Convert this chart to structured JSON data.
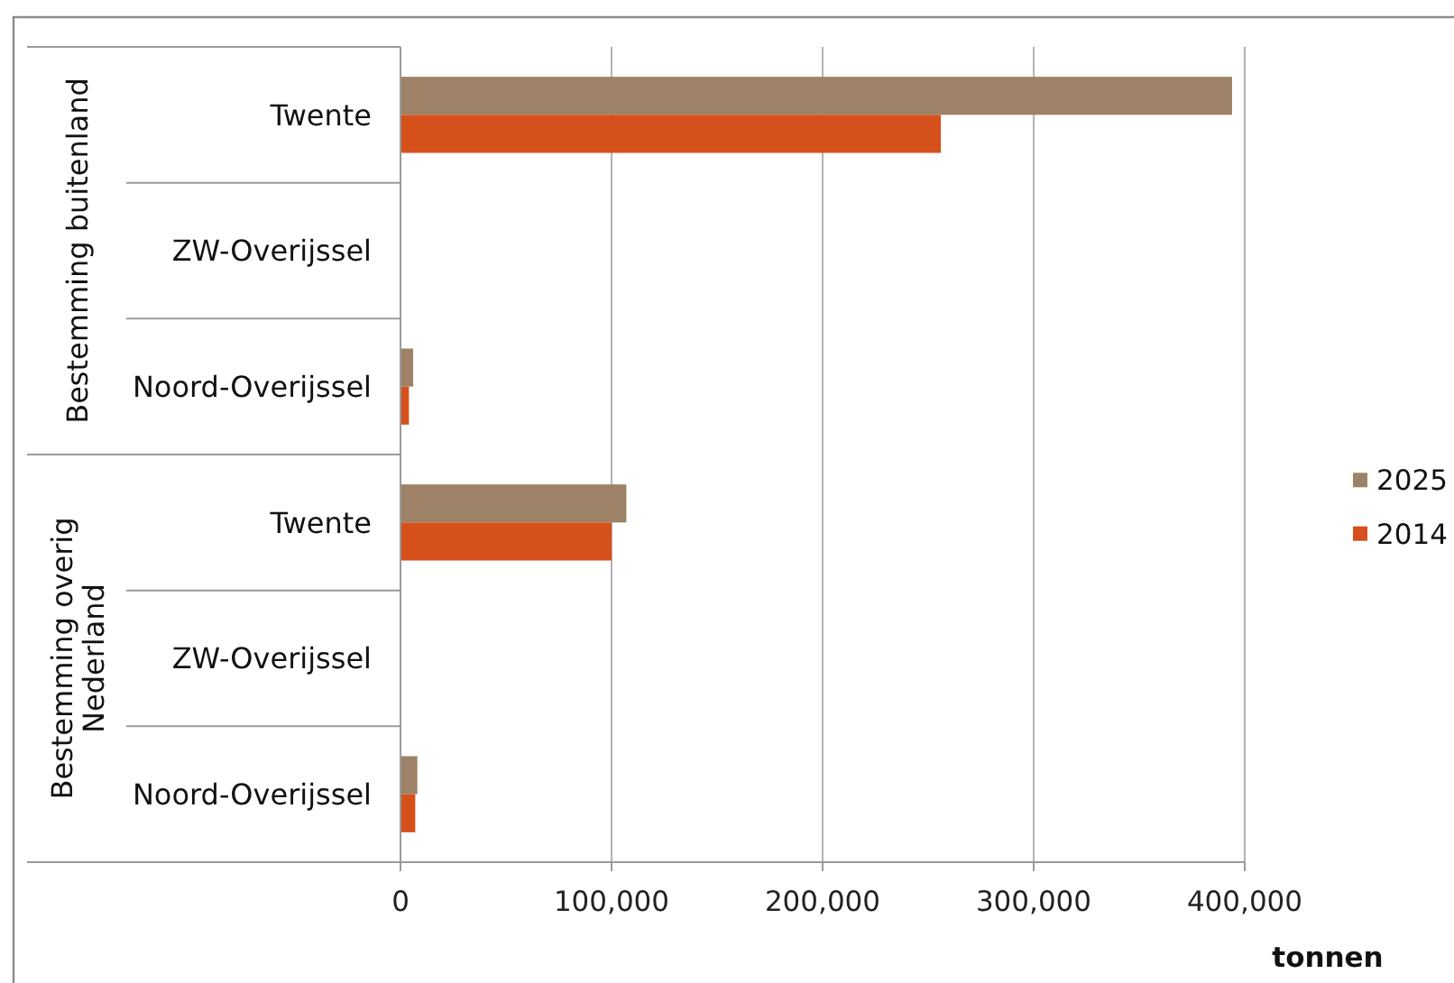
{
  "chart_data": {
    "type": "bar",
    "orientation": "horizontal",
    "categories": [
      "Twente",
      "ZW-Overijssel",
      "Noord-Overijssel",
      "Twente",
      "ZW-Overijssel",
      "Noord-Overijssel"
    ],
    "series": [
      {
        "name": "2025",
        "color": "#9d8267",
        "values": [
          394000,
          null,
          6000,
          107000,
          null,
          8000
        ]
      },
      {
        "name": "2014",
        "color": "#d5501a",
        "values": [
          256000,
          null,
          4000,
          100000,
          null,
          7000
        ]
      }
    ],
    "xlim": [
      0,
      400000
    ],
    "xticks": [
      0,
      {
        "value": 100000,
        "label": "100,000"
      },
      {
        "value": 200000,
        "label": "200,000"
      },
      {
        "value": 300000,
        "label": "300,000"
      },
      {
        "value": 400000,
        "label": "400,000"
      }
    ],
    "xlabel": "tonnen",
    "annotations": [
      "Bestemming buitenland",
      "Bestemming overig Nederland"
    ],
    "grid": "x",
    "legend": "right"
  }
}
